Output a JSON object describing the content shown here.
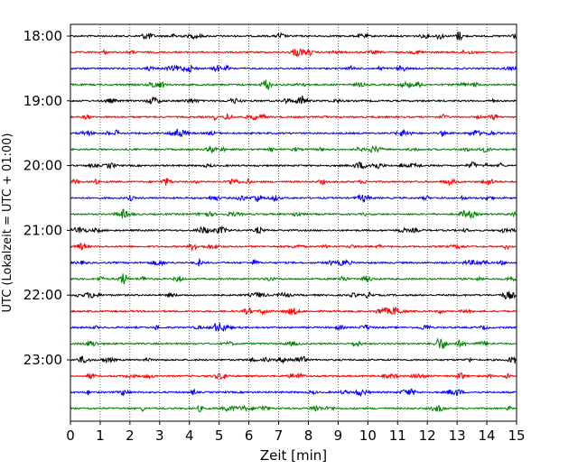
{
  "chart_data": {
    "type": "line",
    "title": "",
    "xlabel": "Zeit  [min]",
    "ylabel": "UTC (Lokalzeit = UTC + 01:00)",
    "xlim": [
      0,
      15
    ],
    "x_ticks": [
      "0",
      "1",
      "2",
      "3",
      "4",
      "5",
      "6",
      "7",
      "8",
      "9",
      "10",
      "11",
      "12",
      "13",
      "14",
      "15"
    ],
    "y_tick_labels": [
      "18:00",
      "19:00",
      "20:00",
      "21:00",
      "22:00",
      "23:00"
    ],
    "grid": "vertical dotted at each minute",
    "trace_interval_minutes": 15,
    "traces": [
      {
        "start": "18:00",
        "color": "#000000"
      },
      {
        "start": "18:15",
        "color": "#ff0000"
      },
      {
        "start": "18:30",
        "color": "#0000ff"
      },
      {
        "start": "18:45",
        "color": "#008000"
      },
      {
        "start": "19:00",
        "color": "#000000"
      },
      {
        "start": "19:15",
        "color": "#ff0000"
      },
      {
        "start": "19:30",
        "color": "#0000ff"
      },
      {
        "start": "19:45",
        "color": "#008000"
      },
      {
        "start": "20:00",
        "color": "#000000"
      },
      {
        "start": "20:15",
        "color": "#ff0000"
      },
      {
        "start": "20:30",
        "color": "#0000ff"
      },
      {
        "start": "20:45",
        "color": "#008000"
      },
      {
        "start": "21:00",
        "color": "#000000"
      },
      {
        "start": "21:15",
        "color": "#ff0000"
      },
      {
        "start": "21:30",
        "color": "#0000ff"
      },
      {
        "start": "21:45",
        "color": "#008000"
      },
      {
        "start": "22:00",
        "color": "#000000"
      },
      {
        "start": "22:15",
        "color": "#ff0000"
      },
      {
        "start": "22:30",
        "color": "#0000ff"
      },
      {
        "start": "22:45",
        "color": "#008000"
      },
      {
        "start": "23:00",
        "color": "#000000"
      },
      {
        "start": "23:15",
        "color": "#ff0000"
      },
      {
        "start": "23:30",
        "color": "#0000ff"
      },
      {
        "start": "23:45",
        "color": "#008000"
      }
    ]
  }
}
